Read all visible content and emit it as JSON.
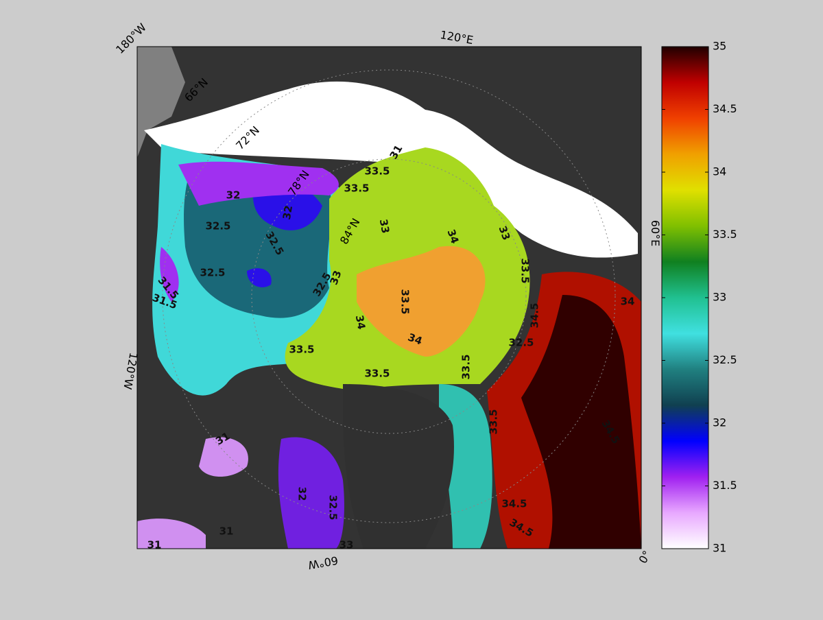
{
  "map": {
    "longitude_labels": [
      "180°W",
      "120°E",
      "60°E",
      "0°",
      "60°W",
      "120°W"
    ],
    "latitude_labels": [
      "66°N",
      "72°N",
      "78°N",
      "84°N"
    ],
    "contour_labels": [
      31,
      31.5,
      32,
      32.5,
      32.5,
      32.5,
      32.5,
      32,
      33,
      33.5,
      33.5,
      33,
      34,
      33.5,
      34,
      34,
      33.5,
      33.5,
      33.5,
      34.5,
      34,
      33.5,
      34.5,
      34.5,
      34.5,
      31,
      32,
      32.5,
      33,
      31,
      31,
      31.5,
      33,
      33.5,
      32.5
    ],
    "colorbar": {
      "range": [
        31,
        35
      ],
      "ticks": [
        31,
        31.5,
        32,
        32.5,
        33,
        33.5,
        34,
        34.5,
        35
      ],
      "colors": [
        "#ffffff",
        "#e8a8ff",
        "#a020f0",
        "#0000ff",
        "#104050",
        "#208080",
        "#40e0e0",
        "#20c090",
        "#108020",
        "#80c000",
        "#e0e000",
        "#f0a000",
        "#f04000",
        "#c00000",
        "#200000"
      ]
    }
  }
}
